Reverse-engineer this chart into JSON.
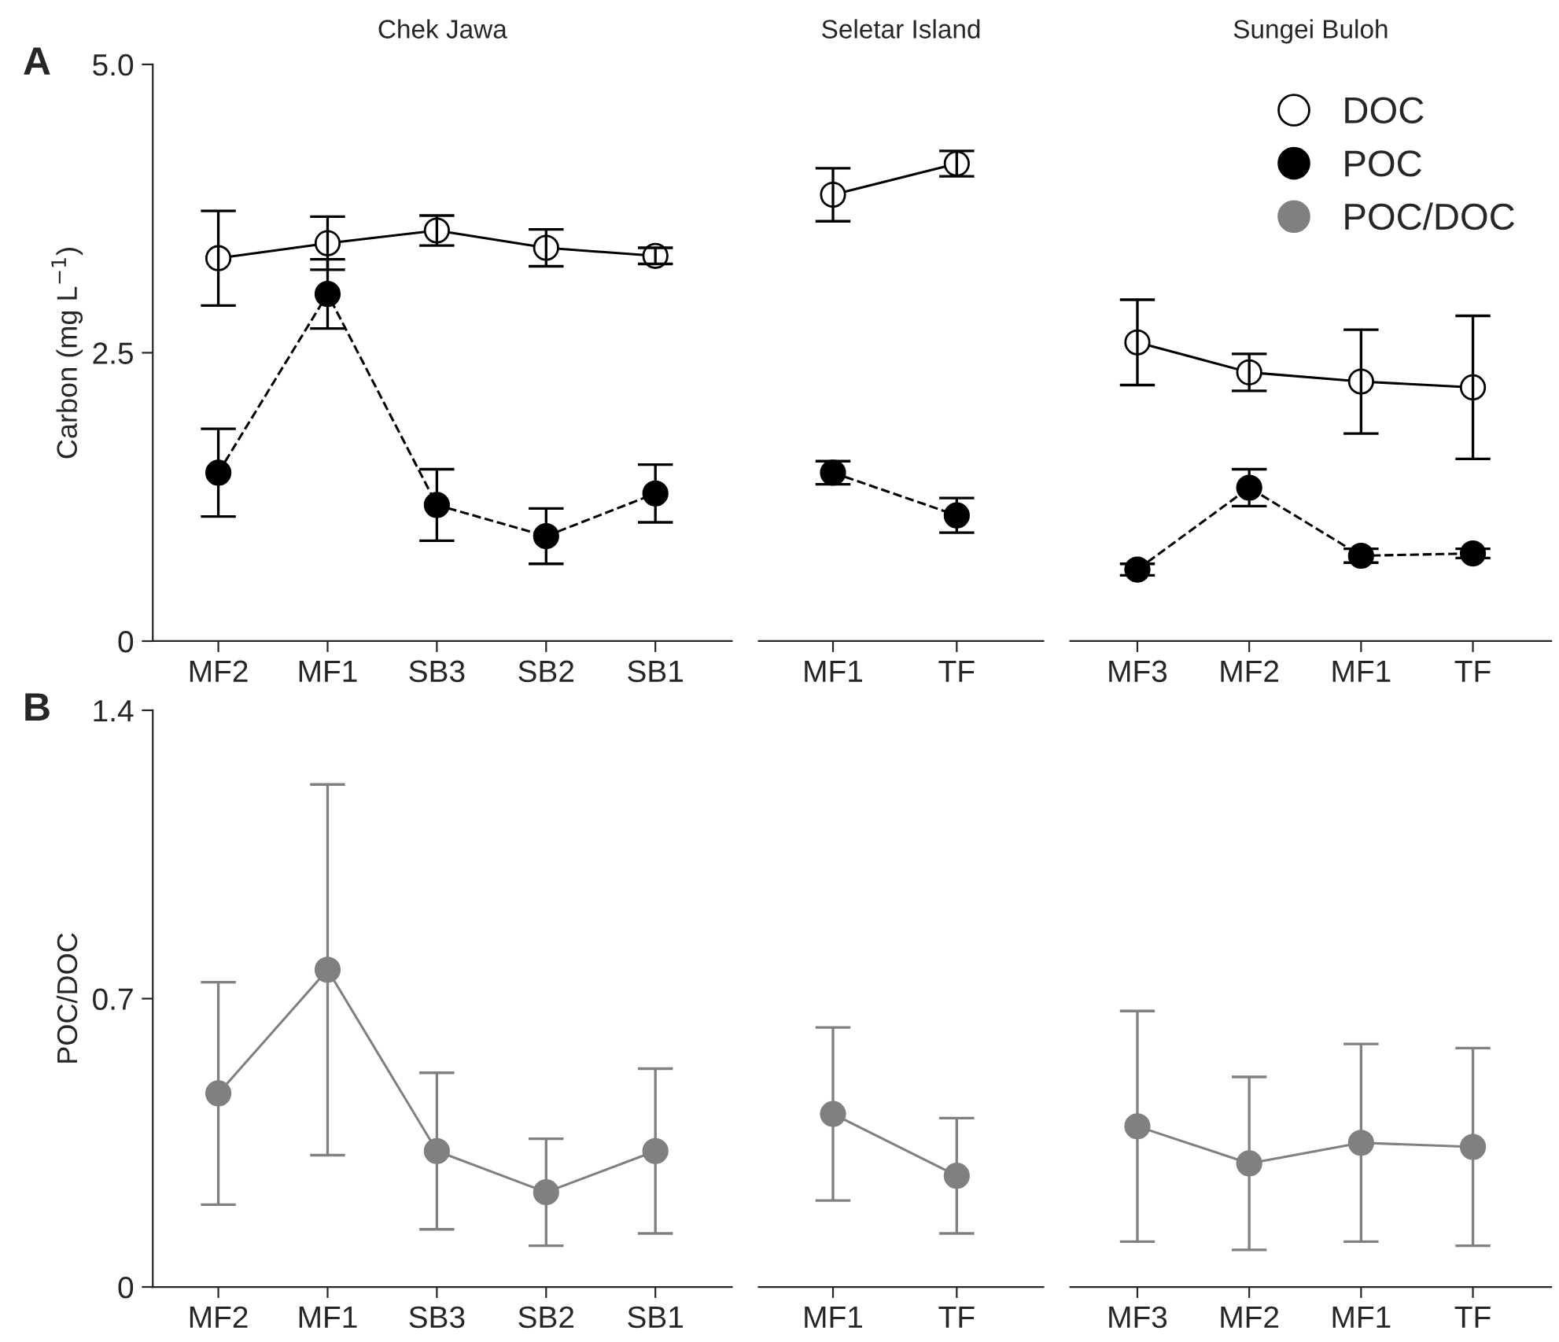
{
  "chart_data": [
    {
      "type": "line",
      "title": "Chek Jawa",
      "ylabel": "Carbon (mg L$^{−1}$)",
      "annotations": [
        "A"
      ],
      "categories": [
        "MF2",
        "MF1",
        "SB3",
        "SB2",
        "SB1"
      ],
      "ylim": [
        0,
        5
      ],
      "yticks": [
        0,
        2.5,
        {
          "value": 5,
          "label": "5.0"
        }
      ],
      "marker": "circle",
      "series": [
        {
          "color": "#ffffff",
          "line_style": "solid",
          "values": [
            3.32,
            3.45,
            3.56,
            3.41,
            3.34
          ],
          "errors": [
            0.41,
            0.23,
            0.13,
            0.16,
            0.07
          ]
        },
        {
          "color": "#000000",
          "line_style": "dashed",
          "values": [
            1.46,
            3.01,
            1.18,
            0.91,
            1.28
          ],
          "errors": [
            0.38,
            0.3,
            0.31,
            0.24,
            0.25
          ]
        }
      ]
    },
    {
      "type": "line",
      "title": "Seletar Island",
      "categories": [
        "MF1",
        "TF"
      ],
      "ylim": [
        0,
        5
      ],
      "tick_labels": "x",
      "marker": "circle",
      "series": [
        {
          "color": "#ffffff",
          "line_style": "solid",
          "values": [
            3.87,
            4.14
          ],
          "errors": [
            0.23,
            0.11
          ]
        },
        {
          "color": "#000000",
          "line_style": "dashed",
          "values": [
            1.46,
            1.09
          ],
          "errors": [
            0.1,
            0.15
          ]
        }
      ]
    },
    {
      "type": "line",
      "title": "Sungei Buloh",
      "categories": [
        "MF3",
        "MF2",
        "MF1",
        "TF"
      ],
      "ylim": [
        0,
        5
      ],
      "tick_labels": "x",
      "marker": "circle",
      "legend": "top right",
      "series": [
        {
          "name": "DOC",
          "color": "#ffffff",
          "line_style": "solid",
          "values": [
            2.59,
            2.33,
            2.25,
            2.2
          ],
          "errors": [
            0.37,
            0.16,
            0.45,
            0.62
          ]
        },
        {
          "name": "POC",
          "color": "#000000",
          "line_style": "dashed",
          "values": [
            0.62,
            1.33,
            0.74,
            0.76
          ],
          "errors": [
            0.05,
            0.16,
            0.06,
            0.04
          ]
        }
      ]
    },
    {
      "type": "line",
      "ylabel": "POC/DOC",
      "annotations": [
        "B"
      ],
      "categories": [
        "MF2",
        "MF1",
        "SB3",
        "SB2",
        "SB1"
      ],
      "ylim": [
        0,
        1.4
      ],
      "yticks": [
        0,
        0.7,
        1.4
      ],
      "marker": "circle",
      "series": [
        {
          "color": "#808080",
          "line_style": "solid",
          "values": [
            0.47,
            0.77,
            0.33,
            0.23,
            0.33
          ],
          "errors": [
            0.27,
            0.45,
            0.19,
            0.13,
            0.2
          ]
        }
      ]
    },
    {
      "type": "line",
      "categories": [
        "MF1",
        "TF"
      ],
      "ylim": [
        0,
        1.4
      ],
      "tick_labels": "x",
      "marker": "circle",
      "series": [
        {
          "color": "#808080",
          "line_style": "solid",
          "values": [
            0.42,
            0.27
          ],
          "errors": [
            0.21,
            0.14
          ]
        }
      ]
    },
    {
      "type": "line",
      "categories": [
        "MF3",
        "MF2",
        "MF1",
        "TF"
      ],
      "ylim": [
        0,
        1.4
      ],
      "tick_labels": "x",
      "marker": "circle",
      "series": [
        {
          "name": "POC/DOC",
          "color": "#808080",
          "line_style": "solid",
          "values": [
            0.39,
            0.3,
            0.35,
            0.34
          ],
          "errors": [
            0.28,
            0.21,
            0.24,
            0.24
          ]
        }
      ]
    }
  ]
}
